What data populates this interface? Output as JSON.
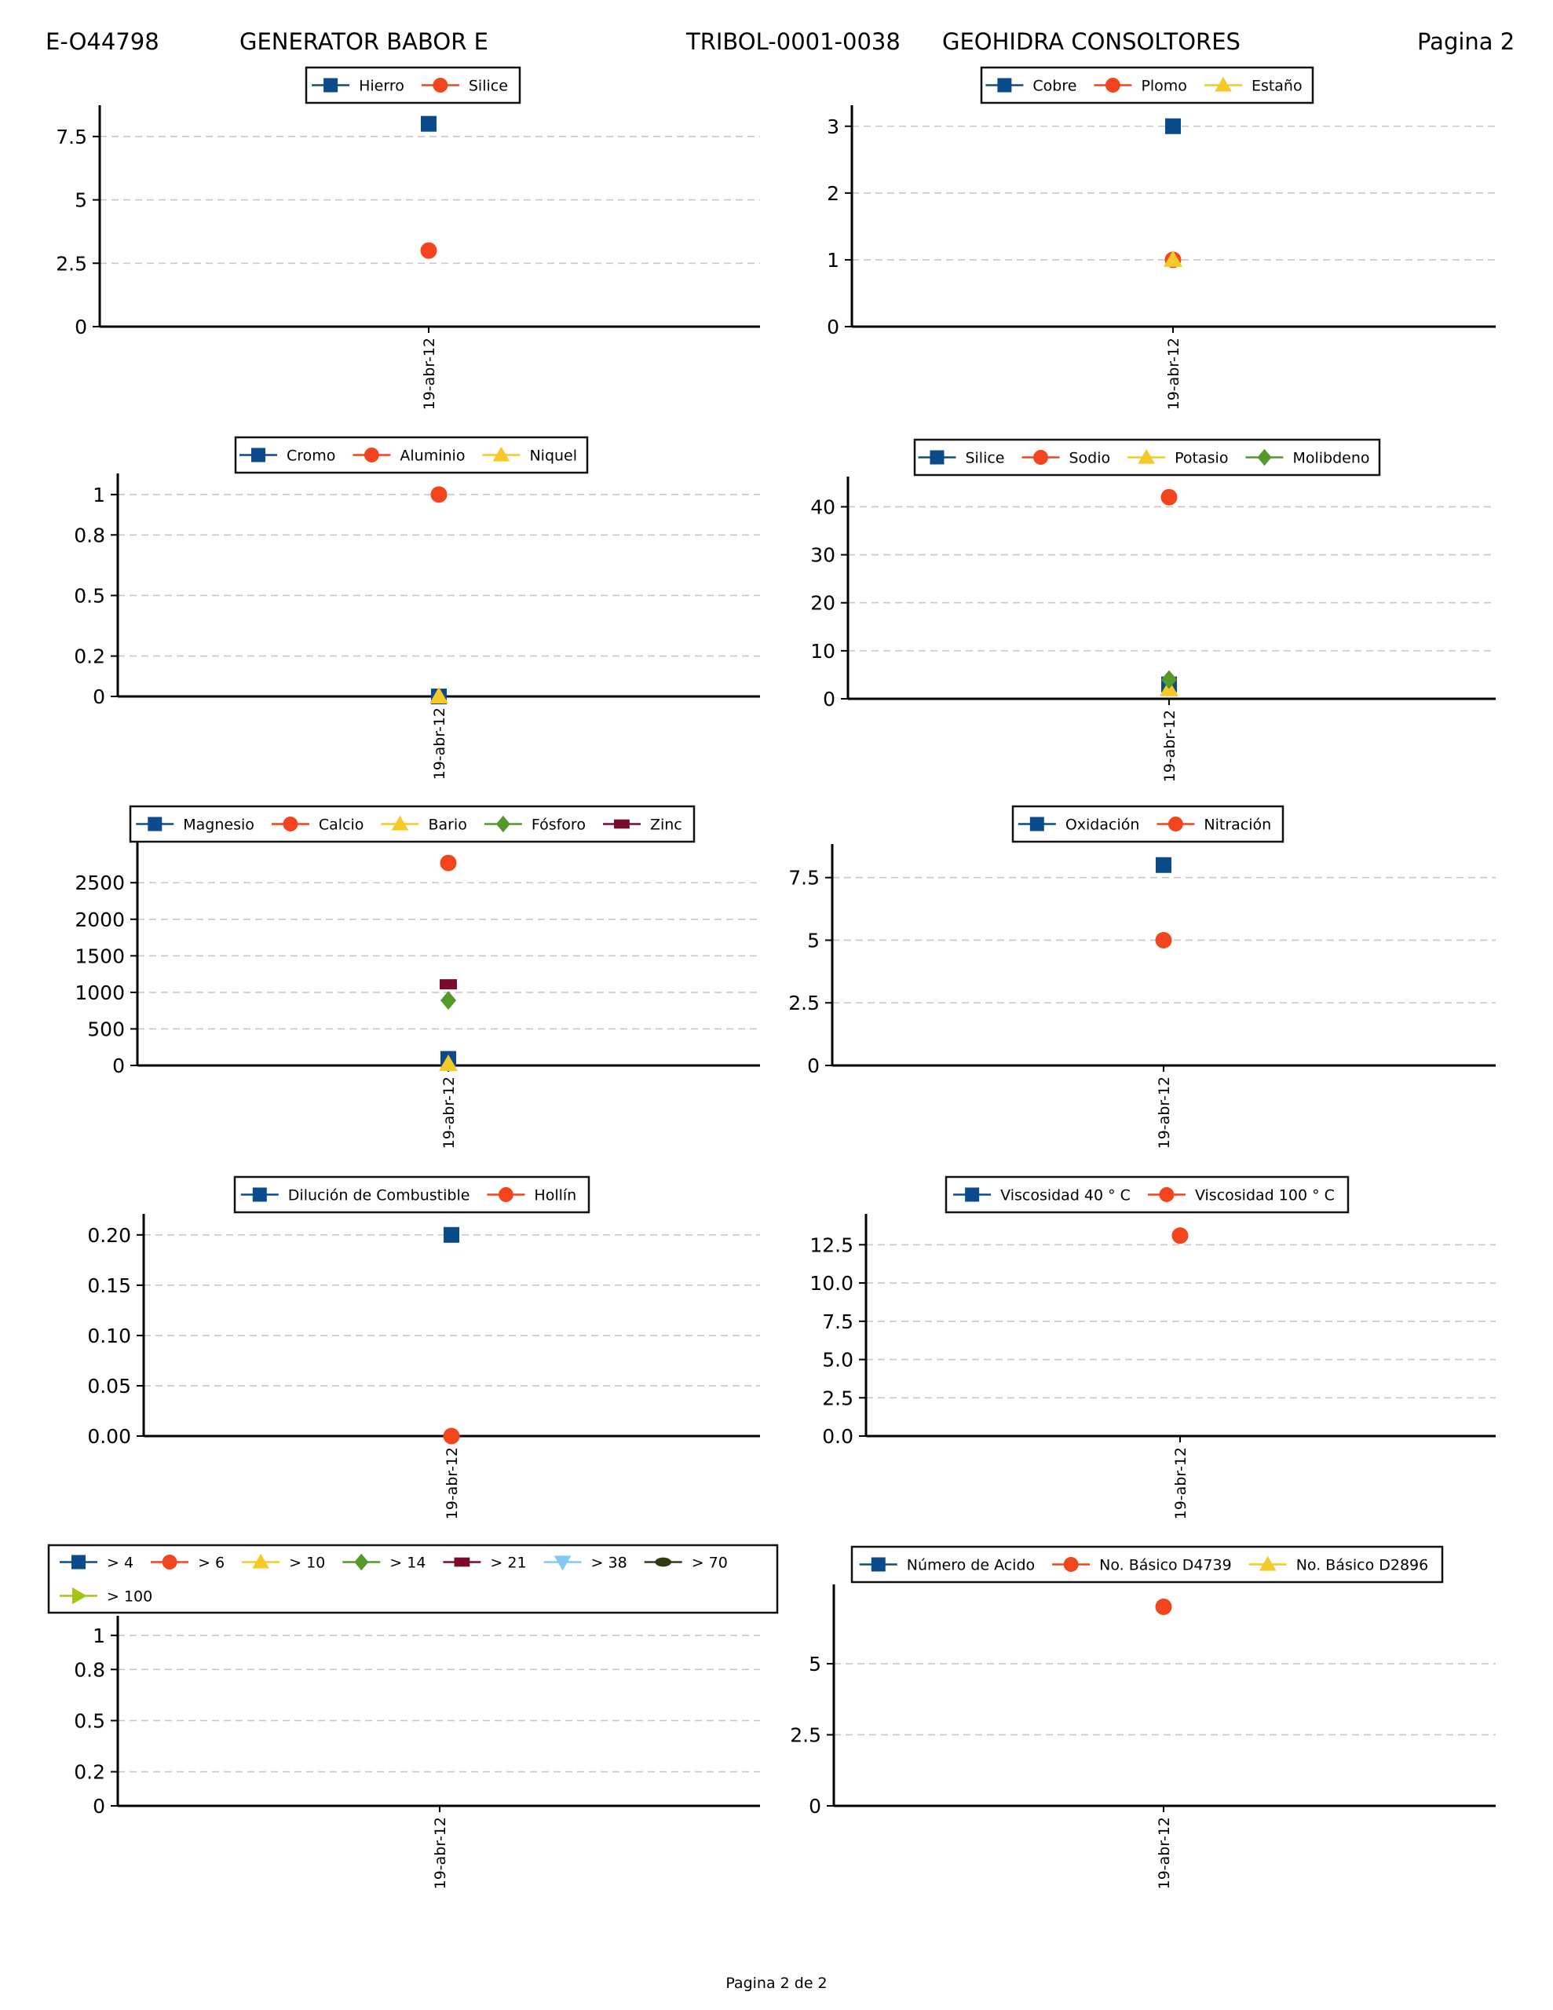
{
  "header": {
    "record_id": "E-O44798",
    "equipment": "GENERATOR BABOR E",
    "sample_code": "TRIBOL-0001-0038",
    "company": "GEOHIDRA CONSOLTORES",
    "page": "Pagina 2"
  },
  "footer": {
    "page_text": "Pagina 2 de  2"
  },
  "marker_styles": [
    {
      "shape": "square",
      "color": "#0b4a8b"
    },
    {
      "shape": "circle",
      "color": "#f2441d"
    },
    {
      "shape": "triangle-up",
      "color": "#f5c927"
    },
    {
      "shape": "diamond",
      "color": "#55992a"
    },
    {
      "shape": "rect-wide",
      "color": "#7b0b2b"
    },
    {
      "shape": "triangle-down",
      "color": "#83c8f2"
    },
    {
      "shape": "ellipse",
      "color": "#2e3a12"
    },
    {
      "shape": "triangle-right",
      "color": "#a2c617"
    }
  ],
  "chart_data": [
    {
      "type": "scatter",
      "x": [
        "19-abr-12"
      ],
      "ylim": [
        0,
        8.3
      ],
      "grid": true,
      "legend": "top-center",
      "yticks": [
        "0",
        "2.5",
        "5",
        "7.5"
      ],
      "series": [
        {
          "name": "Hierro",
          "values": [
            8
          ]
        },
        {
          "name": "Silice",
          "values": [
            3
          ]
        }
      ]
    },
    {
      "type": "scatter",
      "x": [
        "19-abr-12"
      ],
      "ylim": [
        0,
        3.15
      ],
      "grid": true,
      "legend": "top-center",
      "yticks": [
        "0",
        "1",
        "2",
        "3"
      ],
      "series": [
        {
          "name": "Cobre",
          "values": [
            3
          ]
        },
        {
          "name": "Plomo",
          "values": [
            1
          ]
        },
        {
          "name": "Estaño",
          "values": [
            1
          ]
        }
      ]
    },
    {
      "type": "scatter",
      "x": [
        "19-abr-12"
      ],
      "ylim": [
        0,
        1.05
      ],
      "grid": true,
      "legend": "top-center",
      "yticks": [
        "0",
        "0.2",
        "0.5",
        "0.8",
        "1"
      ],
      "series": [
        {
          "name": "Cromo",
          "values": [
            0
          ]
        },
        {
          "name": "Aluminio",
          "values": [
            1
          ]
        },
        {
          "name": "Niquel",
          "values": [
            0
          ]
        }
      ]
    },
    {
      "type": "scatter",
      "x": [
        "19-abr-12"
      ],
      "ylim": [
        0,
        44
      ],
      "grid": true,
      "legend": "top-center",
      "yticks": [
        "0",
        "10",
        "20",
        "30",
        "40"
      ],
      "series": [
        {
          "name": "Silice",
          "values": [
            3
          ]
        },
        {
          "name": "Sodio",
          "values": [
            42
          ]
        },
        {
          "name": "Potasio",
          "values": [
            2
          ]
        },
        {
          "name": "Molibdeno",
          "values": [
            4
          ]
        }
      ]
    },
    {
      "type": "scatter",
      "x": [
        "19-abr-12"
      ],
      "ylim": [
        0,
        2900
      ],
      "grid": true,
      "legend": "top-center",
      "yticks": [
        "0",
        "500",
        "1000",
        "1500",
        "2000",
        "2500"
      ],
      "series": [
        {
          "name": "Magnesio",
          "values": [
            90
          ]
        },
        {
          "name": "Calcio",
          "values": [
            2770
          ]
        },
        {
          "name": "Bario",
          "values": [
            20
          ]
        },
        {
          "name": "Fósforo",
          "values": [
            890
          ]
        },
        {
          "name": "Zinc",
          "values": [
            1110
          ]
        }
      ]
    },
    {
      "type": "scatter",
      "x": [
        "19-abr-12"
      ],
      "ylim": [
        0,
        8.4
      ],
      "grid": true,
      "legend": "top-center",
      "yticks": [
        "0",
        "2.5",
        "5",
        "7.5"
      ],
      "series": [
        {
          "name": "Oxidación",
          "values": [
            8
          ]
        },
        {
          "name": "Nitración",
          "values": [
            5
          ]
        }
      ]
    },
    {
      "type": "scatter",
      "x": [
        "19-abr-12"
      ],
      "ylim": [
        0,
        0.21
      ],
      "grid": true,
      "legend": "top-center",
      "yticks": [
        "0.00",
        "0.05",
        "0.10",
        "0.15",
        "0.20"
      ],
      "series": [
        {
          "name": "Dilución de Combustible",
          "values": [
            0.2
          ]
        },
        {
          "name": "Hollín",
          "values": [
            0
          ]
        }
      ]
    },
    {
      "type": "scatter",
      "x": [
        "19-abr-12"
      ],
      "ylim": [
        0,
        13.8
      ],
      "grid": true,
      "legend": "top-center",
      "yticks": [
        "0.0",
        "2.5",
        "5.0",
        "7.5",
        "10.0",
        "12.5"
      ],
      "series": [
        {
          "name": "Viscosidad 40 ° C",
          "values": [
            null
          ]
        },
        {
          "name": "Viscosidad 100 ° C",
          "values": [
            13.1
          ]
        }
      ]
    },
    {
      "type": "scatter",
      "x": [
        "19-abr-12"
      ],
      "ylim": [
        0,
        1.05
      ],
      "grid": true,
      "legend": "top-center",
      "yticks": [
        "0",
        "0.2",
        "0.5",
        "0.8",
        "1"
      ],
      "series": [
        {
          "name": "> 4",
          "values": [
            null
          ]
        },
        {
          "name": "> 6",
          "values": [
            null
          ]
        },
        {
          "name": "> 10",
          "values": [
            null
          ]
        },
        {
          "name": "> 14",
          "values": [
            null
          ]
        },
        {
          "name": "> 21",
          "values": [
            null
          ]
        },
        {
          "name": "> 38",
          "values": [
            null
          ]
        },
        {
          "name": "> 70",
          "values": [
            null
          ]
        },
        {
          "name": "> 100",
          "values": [
            null
          ]
        }
      ]
    },
    {
      "type": "scatter",
      "x": [
        "19-abr-12"
      ],
      "ylim": [
        0,
        7.4
      ],
      "grid": true,
      "legend": "top-center",
      "yticks": [
        "0",
        "2.5",
        "5"
      ],
      "series": [
        {
          "name": "Número de Acido",
          "values": [
            null
          ]
        },
        {
          "name": "No. Básico D4739",
          "values": [
            7
          ]
        },
        {
          "name": "No. Básico D2896",
          "values": [
            null
          ]
        }
      ]
    }
  ]
}
